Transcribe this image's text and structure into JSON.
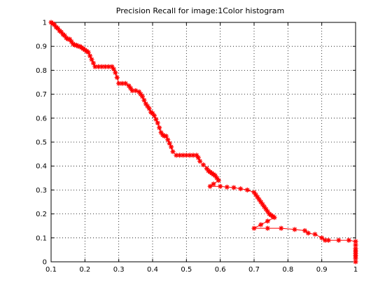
{
  "chart_data": {
    "type": "line",
    "title": "Precision Recall for image:1Color histogram",
    "xlabel": "",
    "ylabel": "",
    "xlim": [
      0.1,
      1.0
    ],
    "ylim": [
      0,
      1.0
    ],
    "xticks": [
      0.1,
      0.2,
      0.3,
      0.4,
      0.5,
      0.6,
      0.7,
      0.8,
      0.9,
      1.0
    ],
    "yticks": [
      0,
      0.1,
      0.2,
      0.3,
      0.4,
      0.5,
      0.6,
      0.7,
      0.8,
      0.9,
      1.0
    ],
    "xtick_labels": [
      "0.1",
      "0.2",
      "0.3",
      "0.4",
      "0.5",
      "0.6",
      "0.7",
      "0.8",
      "0.9",
      "1"
    ],
    "ytick_labels": [
      "0",
      "0.1",
      "0.2",
      "0.3",
      "0.4",
      "0.5",
      "0.6",
      "0.7",
      "0.8",
      "0.9",
      "1"
    ],
    "grid": true,
    "marker": "asterisk",
    "series_color": "#ff0000",
    "series": [
      {
        "x": [
          0.1,
          0.105,
          0.11,
          0.115,
          0.12,
          0.125,
          0.13,
          0.135,
          0.14,
          0.145,
          0.15,
          0.155,
          0.16,
          0.165,
          0.17,
          0.175,
          0.18,
          0.185,
          0.19,
          0.195,
          0.2,
          0.205,
          0.21,
          0.215,
          0.22,
          0.225,
          0.23,
          0.24,
          0.25,
          0.26,
          0.27,
          0.28,
          0.285,
          0.29,
          0.295,
          0.3,
          0.31,
          0.32,
          0.33,
          0.335,
          0.34,
          0.35,
          0.36,
          0.365,
          0.37,
          0.375,
          0.38,
          0.385,
          0.39,
          0.395,
          0.4,
          0.405,
          0.41,
          0.415,
          0.42,
          0.425,
          0.43,
          0.435,
          0.44,
          0.445,
          0.45,
          0.455,
          0.46,
          0.47,
          0.48,
          0.49,
          0.5,
          0.51,
          0.52,
          0.53,
          0.535,
          0.54,
          0.55,
          0.56,
          0.565,
          0.57,
          0.575,
          0.58,
          0.585,
          0.59,
          0.595,
          0.58,
          0.57,
          0.6,
          0.62,
          0.64,
          0.66,
          0.68,
          0.7,
          0.705,
          0.71,
          0.715,
          0.72,
          0.725,
          0.73,
          0.735,
          0.74,
          0.745,
          0.75,
          0.755,
          0.76,
          0.74,
          0.72,
          0.7,
          0.74,
          0.78,
          0.82,
          0.85,
          0.86,
          0.88,
          0.9,
          0.91,
          0.92,
          0.95,
          0.98,
          1.0,
          1.0,
          1.0,
          1.0,
          1.0,
          1.0,
          1.0,
          1.0
        ],
        "y": [
          1.0,
          0.995,
          0.99,
          0.98,
          0.975,
          0.965,
          0.96,
          0.95,
          0.945,
          0.935,
          0.93,
          0.93,
          0.92,
          0.91,
          0.905,
          0.905,
          0.9,
          0.9,
          0.895,
          0.89,
          0.885,
          0.88,
          0.875,
          0.86,
          0.845,
          0.83,
          0.815,
          0.815,
          0.815,
          0.815,
          0.815,
          0.815,
          0.805,
          0.79,
          0.77,
          0.745,
          0.745,
          0.745,
          0.735,
          0.725,
          0.715,
          0.715,
          0.71,
          0.7,
          0.69,
          0.675,
          0.66,
          0.65,
          0.64,
          0.625,
          0.62,
          0.61,
          0.595,
          0.58,
          0.56,
          0.54,
          0.53,
          0.525,
          0.525,
          0.51,
          0.495,
          0.48,
          0.46,
          0.445,
          0.445,
          0.445,
          0.445,
          0.445,
          0.445,
          0.445,
          0.435,
          0.42,
          0.405,
          0.39,
          0.38,
          0.375,
          0.37,
          0.365,
          0.36,
          0.35,
          0.34,
          0.325,
          0.315,
          0.315,
          0.312,
          0.31,
          0.305,
          0.3,
          0.29,
          0.28,
          0.27,
          0.26,
          0.25,
          0.24,
          0.23,
          0.22,
          0.21,
          0.2,
          0.195,
          0.19,
          0.185,
          0.17,
          0.155,
          0.14,
          0.14,
          0.14,
          0.135,
          0.13,
          0.12,
          0.115,
          0.1,
          0.09,
          0.09,
          0.09,
          0.09,
          0.085,
          0.07,
          0.055,
          0.045,
          0.035,
          0.025,
          0.015,
          0.0
        ]
      }
    ]
  }
}
